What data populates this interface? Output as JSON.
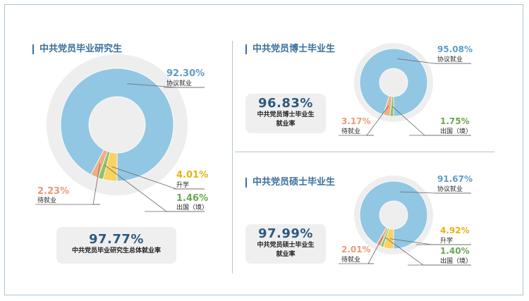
{
  "colors": {
    "employed": "#91c7e2",
    "further_study": "#f8d262",
    "abroad": "#8dc466",
    "pending": "#f2ad86",
    "ring_bg": "#eeeeee",
    "pct_employed": "#5e9cc7",
    "pct_further_study": "#e6b410",
    "pct_abroad": "#6aa84f",
    "pct_pending": "#eb9a77"
  },
  "chart_data": [
    {
      "type": "pie",
      "title": "中共党员毕业研究生",
      "summary": {
        "value": "97.77%",
        "label": "中共党员毕业研究生总体就业率"
      },
      "slices": [
        {
          "key": "employed",
          "label": "协议就业",
          "value": 92.3,
          "display": "92.30%"
        },
        {
          "key": "further_study",
          "label": "升学",
          "value": 4.01,
          "display": "4.01%"
        },
        {
          "key": "abroad",
          "label": "出国（境）",
          "value": 1.46,
          "display": "1.46%"
        },
        {
          "key": "pending",
          "label": "待就业",
          "value": 2.23,
          "display": "2.23%"
        }
      ]
    },
    {
      "type": "pie",
      "title": "中共党员博士毕业生",
      "summary": {
        "value": "96.83%",
        "label_line1": "中共党员博士毕业生",
        "label_line2": "就业率"
      },
      "slices": [
        {
          "key": "employed",
          "label": "协议就业",
          "value": 95.08,
          "display": "95.08%"
        },
        {
          "key": "abroad",
          "label": "出国（境）",
          "value": 1.75,
          "display": "1.75%"
        },
        {
          "key": "pending",
          "label": "待就业",
          "value": 3.17,
          "display": "3.17%"
        }
      ]
    },
    {
      "type": "pie",
      "title": "中共党员硕士毕业生",
      "summary": {
        "value": "97.99%",
        "label_line1": "中共党员硕士毕业生",
        "label_line2": "就业率"
      },
      "slices": [
        {
          "key": "employed",
          "label": "协议就业",
          "value": 91.67,
          "display": "91.67%"
        },
        {
          "key": "further_study",
          "label": "升学",
          "value": 4.92,
          "display": "4.92%"
        },
        {
          "key": "abroad",
          "label": "出国（境）",
          "value": 1.4,
          "display": "1.40%"
        },
        {
          "key": "pending",
          "label": "待就业",
          "value": 2.01,
          "display": "2.01%"
        }
      ]
    }
  ]
}
